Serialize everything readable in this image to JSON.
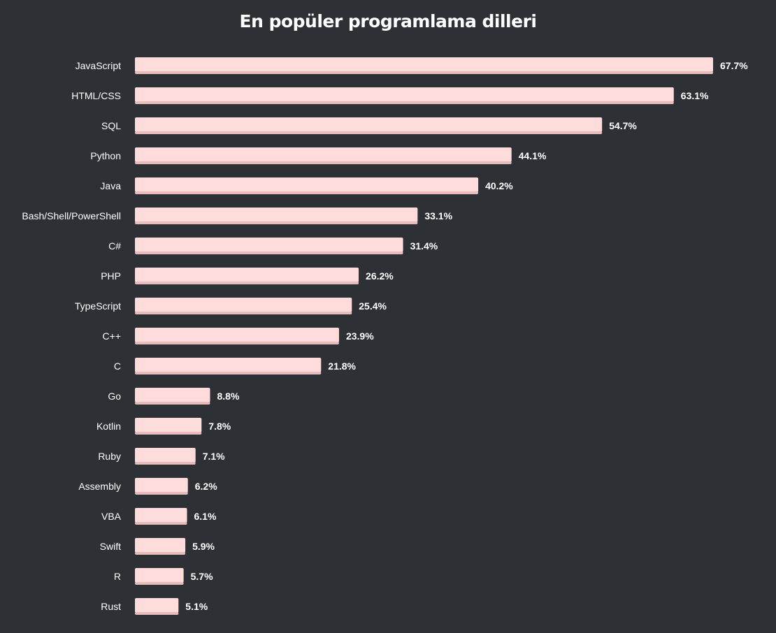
{
  "chart_data": {
    "type": "bar",
    "orientation": "horizontal",
    "title": "En popüler programlama dilleri",
    "categories": [
      "JavaScript",
      "HTML/CSS",
      "SQL",
      "Python",
      "Java",
      "Bash/Shell/PowerShell",
      "C#",
      "PHP",
      "TypeScript",
      "C++",
      "C",
      "Go",
      "Kotlin",
      "Ruby",
      "Assembly",
      "VBA",
      "Swift",
      "R",
      "Rust"
    ],
    "values": [
      67.7,
      63.1,
      54.7,
      44.1,
      40.2,
      33.1,
      31.4,
      26.2,
      25.4,
      23.9,
      21.8,
      8.8,
      7.8,
      7.1,
      6.2,
      6.1,
      5.9,
      5.7,
      5.1
    ],
    "value_labels": [
      "67.7%",
      "63.1%",
      "54.7%",
      "44.1%",
      "40.2%",
      "33.1%",
      "31.4%",
      "26.2%",
      "25.4%",
      "23.9%",
      "21.8%",
      "8.8%",
      "7.8%",
      "7.1%",
      "6.2%",
      "6.1%",
      "5.9%",
      "5.7%",
      "5.1%"
    ],
    "xlim": [
      0,
      67.7
    ],
    "grid": false,
    "legend": "none",
    "colors": {
      "background": "#2d3035",
      "bar": "#ffdcdc",
      "bar_shadow": "#e9bcbc",
      "text": "#ffffff"
    }
  }
}
